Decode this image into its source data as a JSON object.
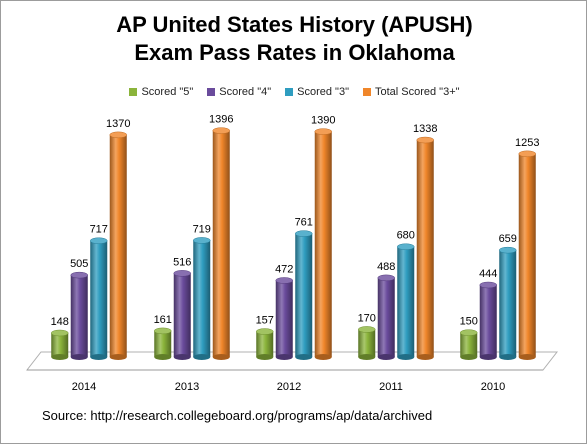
{
  "title_line1": "AP United States History (APUSH)",
  "title_line2": "Exam Pass Rates in Oklahoma",
  "source": "Source: http://research.collegeboard.org/programs/ap/data/archived",
  "legend": [
    {
      "label": "Scored \"5\"",
      "color": "#8bb43b"
    },
    {
      "label": "Scored \"4\"",
      "color": "#6a4b9c"
    },
    {
      "label": "Scored \"3\"",
      "color": "#2f9dc0"
    },
    {
      "label": "Total Scored \"3+\"",
      "color": "#f0862a"
    }
  ],
  "chart_data": {
    "type": "bar",
    "title": "AP United States History (APUSH) Exam Pass Rates in Oklahoma",
    "categories": [
      "2014",
      "2013",
      "2012",
      "2011",
      "2010"
    ],
    "series": [
      {
        "name": "Scored \"5\"",
        "color": "#8bb43b",
        "values": [
          148,
          161,
          157,
          170,
          150
        ]
      },
      {
        "name": "Scored \"4\"",
        "color": "#6a4b9c",
        "values": [
          505,
          516,
          472,
          488,
          444
        ]
      },
      {
        "name": "Scored \"3\"",
        "color": "#2f9dc0",
        "values": [
          717,
          719,
          761,
          680,
          659
        ]
      },
      {
        "name": "Total Scored \"3+\"",
        "color": "#f0862a",
        "values": [
          1370,
          1396,
          1390,
          1338,
          1253
        ]
      }
    ],
    "ylim": [
      0,
      1400
    ],
    "grid": false,
    "legend_position": "top",
    "data_labels": true,
    "style": "3d-cylinder"
  }
}
